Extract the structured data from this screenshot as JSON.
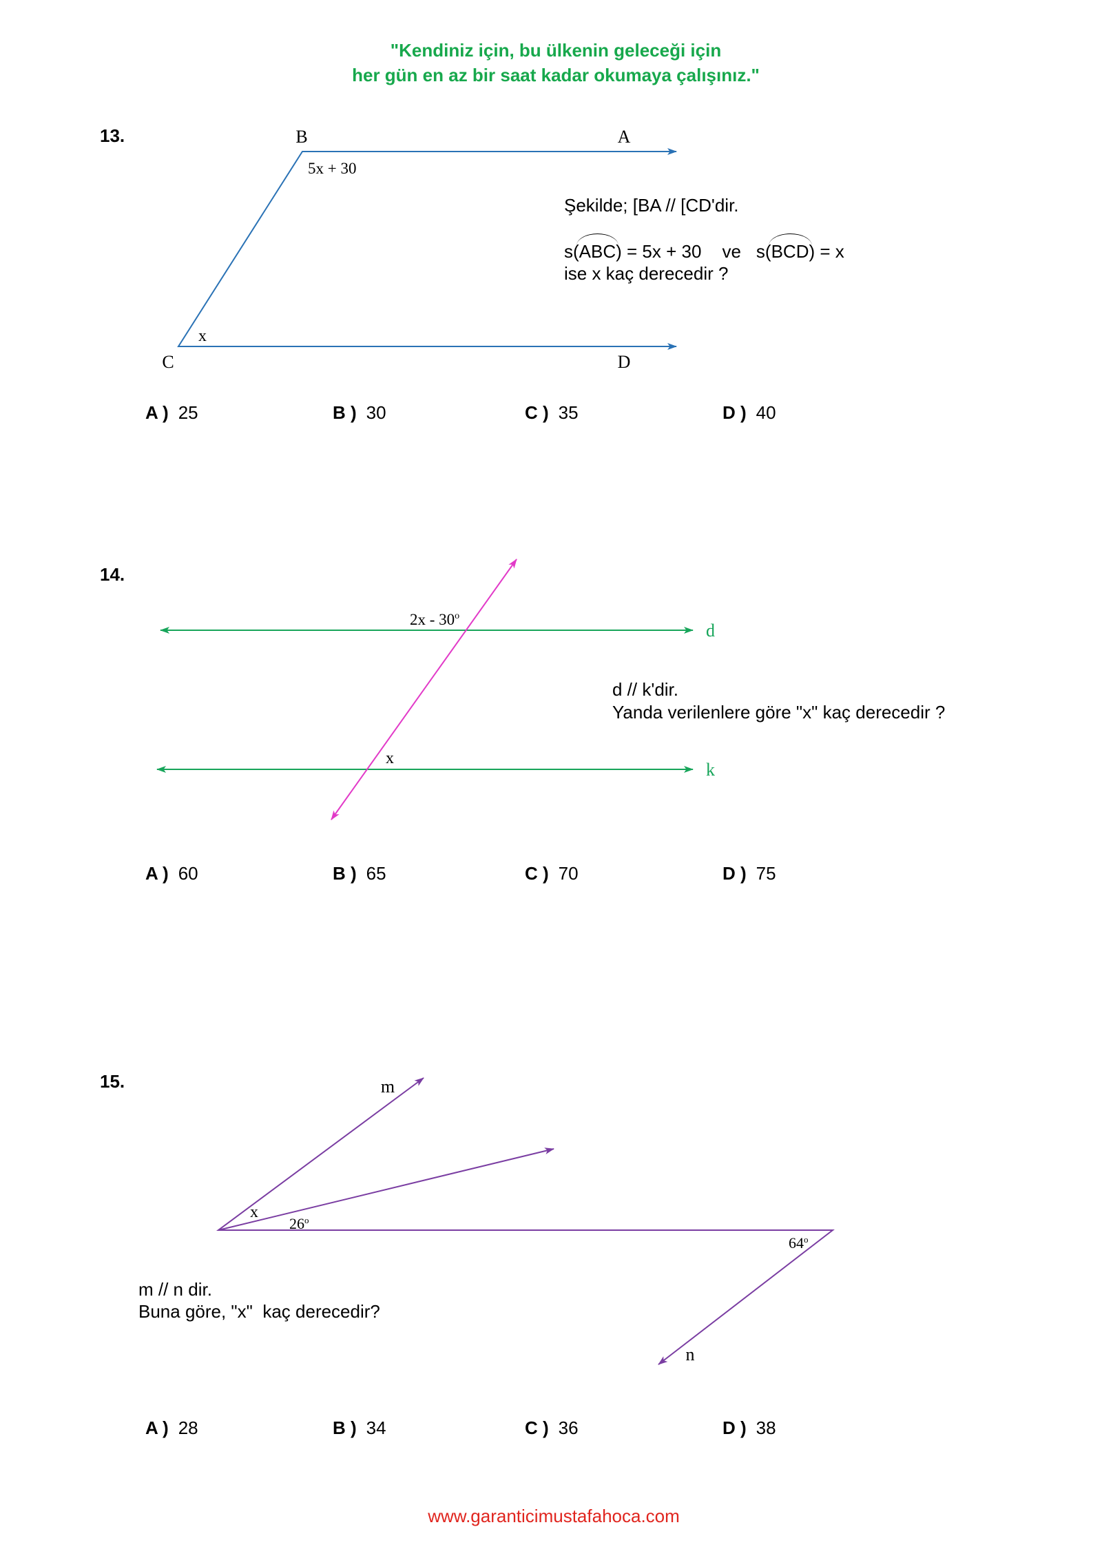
{
  "header": {
    "line1": "\"Kendiniz için, bu ülkenin geleceği için",
    "line2": "her gün en az bir saat kadar okumaya çalışınız.\""
  },
  "colors": {
    "header": "#17a84c",
    "q13_figure": "#2a72b5",
    "q14_parallel_lines": "#17a55a",
    "q14_transversal": "#e23ac8",
    "q15_figure": "#7a3da2",
    "footer": "#e0251e"
  },
  "questions": [
    {
      "number": "13.",
      "figure": {
        "points": {
          "A": "A",
          "B": "B",
          "C": "C",
          "D": "D"
        },
        "angle_B": "5x + 30",
        "angle_C": "x"
      },
      "statement": {
        "line1": "Şekilde; [BA // [CD'dir.",
        "given": [
          {
            "prefix": "s(",
            "angle": "ABC",
            "suffix": ") = 5x + 30"
          },
          {
            "prefix": "s(",
            "angle": "BCD",
            "suffix": ") = x"
          }
        ],
        "connector": "ve",
        "line3": "ise x kaç derecedir ?"
      },
      "options": [
        {
          "letter": "A )",
          "value": "25"
        },
        {
          "letter": "B )",
          "value": "30"
        },
        {
          "letter": "C )",
          "value": "35"
        },
        {
          "letter": "D )",
          "value": "40"
        }
      ]
    },
    {
      "number": "14.",
      "figure": {
        "lines": {
          "d": "d",
          "k": "k"
        },
        "angle_top": {
          "value": "2x - 30",
          "degree": "o"
        },
        "angle_bottom": "x"
      },
      "statement": {
        "line1": "d // k'dir.",
        "line2": "Yanda verilenlere göre \"x\" kaç derecedir ?"
      },
      "options": [
        {
          "letter": "A )",
          "value": "60"
        },
        {
          "letter": "B )",
          "value": "65"
        },
        {
          "letter": "C )",
          "value": "70"
        },
        {
          "letter": "D )",
          "value": "75"
        }
      ]
    },
    {
      "number": "15.",
      "figure": {
        "lines": {
          "m": "m",
          "n": "n"
        },
        "angle_x": "x",
        "angle_26": {
          "value": "26",
          "degree": "o"
        },
        "angle_64": {
          "value": "64",
          "degree": "o"
        }
      },
      "statement": {
        "line1": "m // n dir.",
        "line2": "Buna göre, \"x\"  kaç derecedir?"
      },
      "options": [
        {
          "letter": "A )",
          "value": "28"
        },
        {
          "letter": "B )",
          "value": "34"
        },
        {
          "letter": "C )",
          "value": "36"
        },
        {
          "letter": "D )",
          "value": "38"
        }
      ]
    }
  ],
  "footer": {
    "url": "www.garanticimustafahoca.com"
  }
}
